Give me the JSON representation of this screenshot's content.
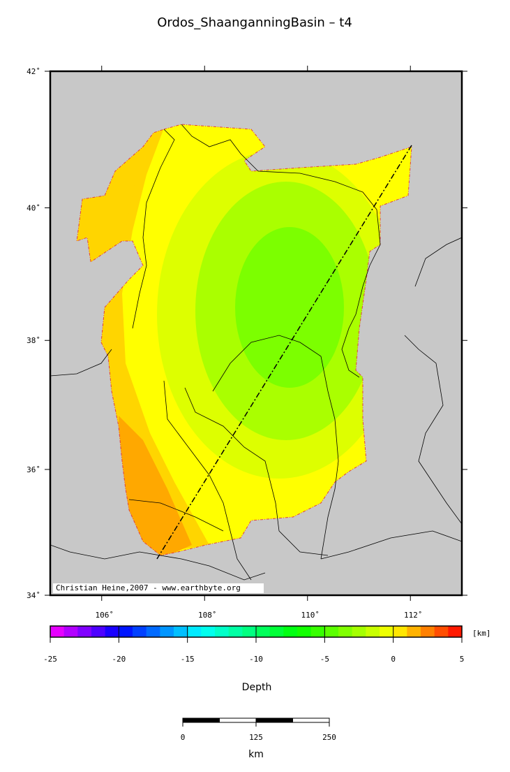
{
  "title": "Ordos_ShaanganningBasin – t4",
  "map": {
    "xlim": [
      105,
      113
    ],
    "ylim": [
      34,
      42
    ],
    "lat_ticks": [
      {
        "value": 42,
        "label": "42˚"
      },
      {
        "value": 40,
        "label": "40˚"
      },
      {
        "value": 38,
        "label": "38˚"
      },
      {
        "value": 36,
        "label": "36˚"
      },
      {
        "value": 34,
        "label": "34˚"
      }
    ],
    "lon_ticks": [
      {
        "value": 106,
        "label": "106˚"
      },
      {
        "value": 108,
        "label": "108˚"
      },
      {
        "value": 110,
        "label": "110˚"
      },
      {
        "value": 112,
        "label": "112˚"
      }
    ],
    "credit": "Christian Heine,2007 - www.earthbyte.org"
  },
  "colorbar": {
    "ticks": [
      -25,
      -20,
      -15,
      -10,
      -5,
      0,
      5
    ],
    "unit": "[km]",
    "label": "Depth"
  },
  "scalebar": {
    "ticks": [
      0,
      125,
      250
    ],
    "unit": "km"
  }
}
